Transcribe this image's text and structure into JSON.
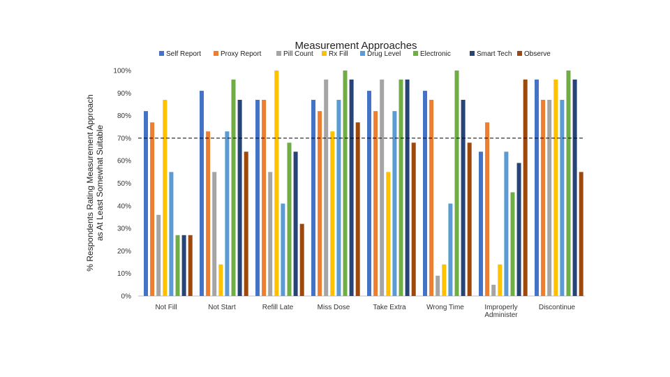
{
  "chart_data": {
    "type": "bar",
    "title": "Measurement Approaches",
    "ylabel_lines": [
      "% Respondents Rating Measurement Approach",
      "as At Least Somewhat Suitable"
    ],
    "xlabel": "",
    "ylim": [
      0,
      100
    ],
    "yticks": [
      "0%",
      "10%",
      "20%",
      "30%",
      "40%",
      "50%",
      "60%",
      "70%",
      "80%",
      "90%",
      "100%"
    ],
    "threshold": 70,
    "categories": [
      [
        "Not Fill"
      ],
      [
        "Not Start"
      ],
      [
        "Refill Late"
      ],
      [
        "Miss Dose"
      ],
      [
        "Take Extra"
      ],
      [
        "Wrong Time"
      ],
      [
        "Improperly",
        "Administer"
      ],
      [
        "Discontinue"
      ]
    ],
    "series": [
      {
        "name": "Self Report",
        "color": "#4472C4",
        "values": [
          82,
          91,
          87,
          87,
          91,
          91,
          64,
          96
        ]
      },
      {
        "name": "Proxy Report",
        "color": "#ED7D31",
        "values": [
          77,
          73,
          87,
          82,
          82,
          87,
          77,
          87
        ]
      },
      {
        "name": "Pill Count",
        "color": "#A5A5A5",
        "values": [
          36,
          55,
          55,
          96,
          96,
          9,
          5,
          87
        ]
      },
      {
        "name": "Rx Fill",
        "color": "#FFC000",
        "values": [
          87,
          14,
          100,
          73,
          55,
          14,
          14,
          96
        ]
      },
      {
        "name": "Drug Level",
        "color": "#5B9BD5",
        "values": [
          55,
          73,
          41,
          87,
          82,
          41,
          64,
          87
        ]
      },
      {
        "name": "Electronic",
        "color": "#70AD47",
        "values": [
          27,
          96,
          68,
          100,
          96,
          100,
          46,
          100
        ]
      },
      {
        "name": "Smart Tech",
        "color": "#264478",
        "values": [
          27,
          87,
          64,
          96,
          96,
          87,
          59,
          96
        ]
      },
      {
        "name": "Observe",
        "color": "#9E480E",
        "values": [
          27,
          64,
          32,
          77,
          68,
          68,
          96,
          55
        ]
      }
    ]
  }
}
